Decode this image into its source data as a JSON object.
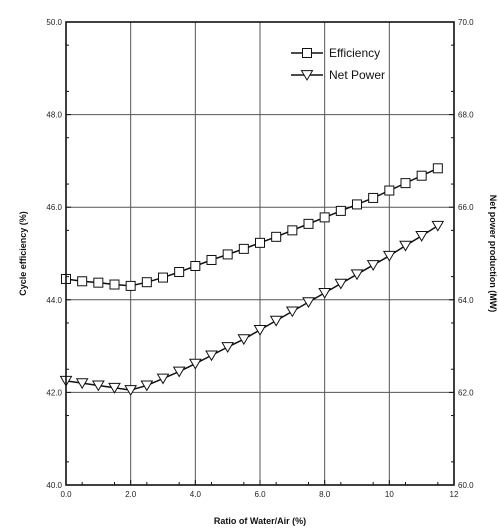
{
  "chart_data": {
    "type": "line",
    "title": "",
    "xlabel": "Ratio of Water/Air (%)",
    "ylabel_left": "Cycle efficiency (%)",
    "ylabel_right": "Net power production (MW)",
    "xlim": [
      0,
      12
    ],
    "ylim_left": [
      40,
      50
    ],
    "ylim_right": [
      60,
      70
    ],
    "x_ticks": [
      "0.0",
      "2.0",
      "4.0",
      "6.0",
      "8.0",
      "10",
      "12"
    ],
    "y_left_ticks": [
      "40.0",
      "42.0",
      "44.0",
      "46.0",
      "48.0",
      "50.0"
    ],
    "y_right_ticks": [
      "60.0",
      "62.0",
      "64.0",
      "66.0",
      "68.0",
      "70.0"
    ],
    "grid": true,
    "legend_position": "top-right",
    "x": [
      0,
      0.5,
      1.0,
      1.5,
      2.0,
      2.5,
      3.0,
      3.5,
      4.0,
      4.5,
      5.0,
      5.5,
      6.0,
      6.5,
      7.0,
      7.5,
      8.0,
      8.5,
      9.0,
      9.5,
      10.0,
      10.5,
      11.0,
      11.5
    ],
    "series": [
      {
        "name": "Efficiency",
        "axis": "left",
        "marker": "square",
        "values": [
          44.45,
          44.4,
          44.37,
          44.33,
          44.3,
          44.38,
          44.48,
          44.6,
          44.73,
          44.86,
          44.98,
          45.1,
          45.23,
          45.36,
          45.5,
          45.64,
          45.78,
          45.92,
          46.06,
          46.2,
          46.36,
          46.52,
          46.68,
          46.84
        ]
      },
      {
        "name": "Net Power",
        "axis": "right",
        "marker": "triangle-down",
        "values": [
          62.25,
          62.2,
          62.15,
          62.1,
          62.05,
          62.15,
          62.3,
          62.45,
          62.62,
          62.8,
          62.98,
          63.15,
          63.35,
          63.55,
          63.75,
          63.95,
          64.15,
          64.35,
          64.55,
          64.75,
          64.95,
          65.17,
          65.38,
          65.6
        ]
      }
    ]
  }
}
